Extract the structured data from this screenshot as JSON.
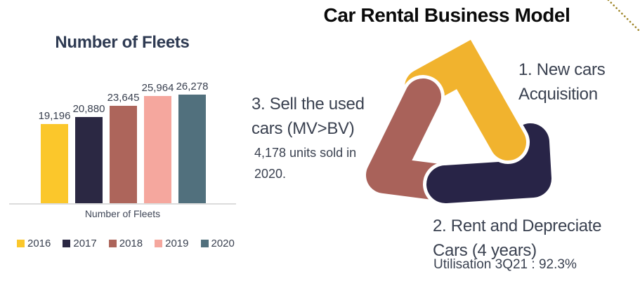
{
  "chart_data": {
    "type": "bar",
    "title": "Number of Fleets",
    "categories": [
      "2016",
      "2017",
      "2018",
      "2019",
      "2020"
    ],
    "values": [
      19196,
      20880,
      23645,
      25964,
      26278
    ],
    "data_labels": [
      "19,196",
      "20,880",
      "23,645",
      "25,964",
      "26,278"
    ],
    "xlabel": "Number of Fleets",
    "ylabel": "",
    "ylim": [
      0,
      26278
    ],
    "grid": false,
    "legend_position": "bottom",
    "bar_colors": [
      "#FBC72B",
      "#2B2843",
      "#AD655B",
      "#F5A79E",
      "#51707D"
    ]
  },
  "model": {
    "title": "Car Rental Business Model",
    "steps": {
      "step1": {
        "line1": "1. New cars",
        "line2": "Acquisition"
      },
      "step2": {
        "line1": "2. Rent and Depreciate",
        "line2": "Cars (4 years)",
        "sub": "Utilisation 3Q21 : 92.3%"
      },
      "step3": {
        "line1": "3. Sell the used",
        "line2": "cars (MV>BV)",
        "sub_line1": "4,178 units sold in",
        "sub_line2": "2020."
      }
    },
    "triangle_colors": {
      "top": "#F1B32E",
      "left": "#A9625A",
      "bottom": "#282447"
    },
    "decoration": {
      "dotted_line_color": "#9D8426"
    }
  }
}
